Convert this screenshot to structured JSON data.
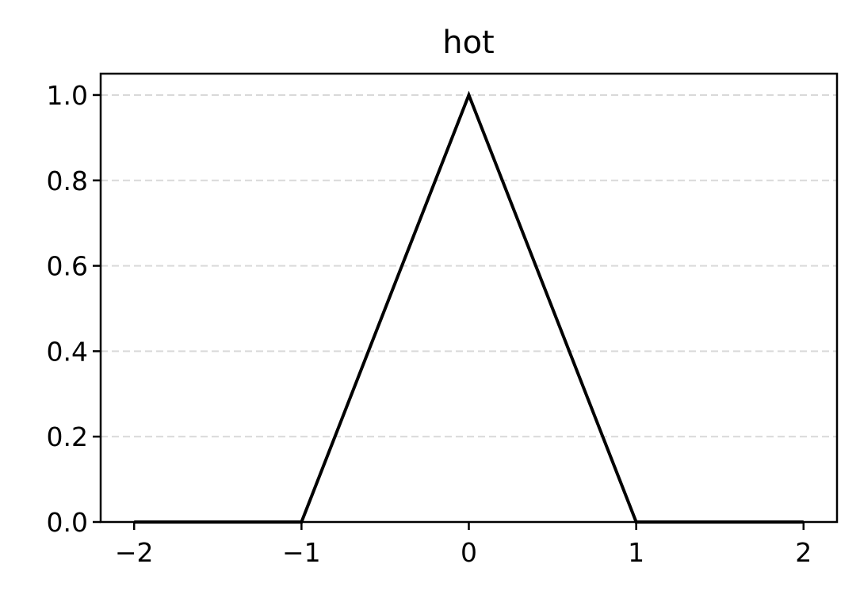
{
  "chart_data": {
    "type": "line",
    "title": "hot",
    "xlabel": "",
    "ylabel": "",
    "x": [
      -2,
      -1,
      0,
      1,
      2
    ],
    "series": [
      {
        "values": [
          0,
          0,
          1,
          0,
          0
        ],
        "color": "#000000"
      }
    ],
    "xlim": [
      -2.2,
      2.2
    ],
    "ylim": [
      0,
      1.05
    ],
    "xticks": [
      -2,
      -1,
      0,
      1,
      2
    ],
    "xtick_labels": [
      "−2",
      "−1",
      "0",
      "1",
      "2"
    ],
    "yticks": [
      0,
      0.2,
      0.4,
      0.6,
      0.8,
      1.0
    ],
    "ytick_labels": [
      "0.0",
      "0.2",
      "0.4",
      "0.6",
      "0.8",
      "1.0"
    ],
    "grid": {
      "axis": "y",
      "style": "dashed",
      "color": "#d9d9d9"
    },
    "legend": false
  }
}
